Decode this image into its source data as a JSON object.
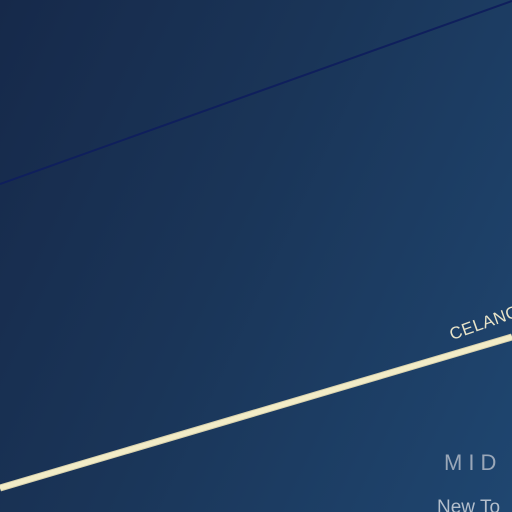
{
  "map": {
    "colors": {
      "background": "#1a3558",
      "major_road": "#f2ecc7",
      "minor_road": "#0f1f5c",
      "route_label": "#e9e4c8",
      "district_label": "#9aa7b8",
      "sub_label": "#b4bfcc"
    },
    "roads": [
      {
        "name": "minor-road",
        "kind": "minor"
      },
      {
        "name": "major-road",
        "kind": "major"
      }
    ],
    "labels": {
      "route": "CELANO",
      "district": "MID",
      "sub": "New To"
    }
  }
}
